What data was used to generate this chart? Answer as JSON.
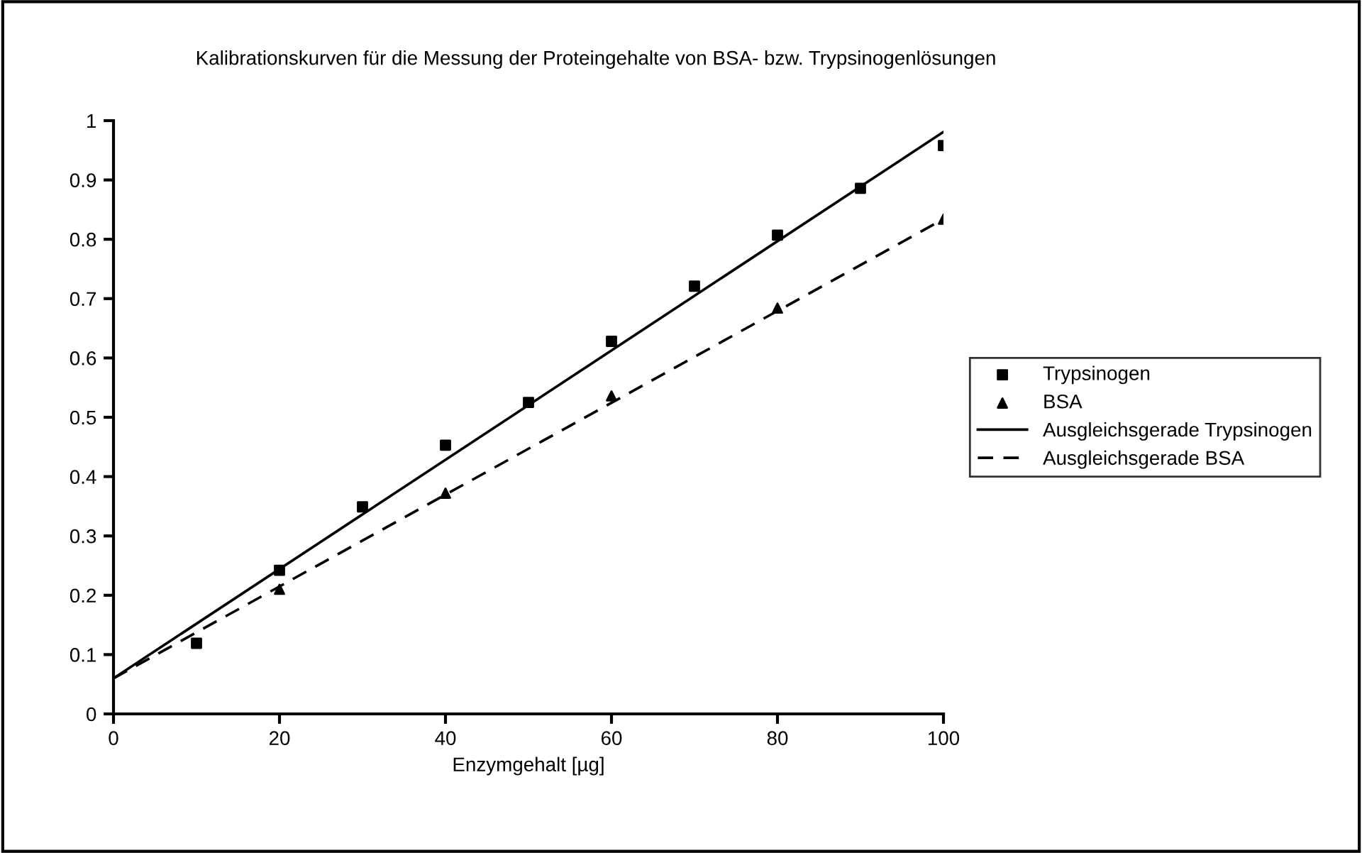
{
  "chart_data": {
    "type": "scatter",
    "title": "Kalibrationskurven für die Messung der Proteingehalte von BSA- bzw. Trypsinogenlösungen",
    "xlabel": "Enzymgehalt [µg]",
    "xlim": [
      0,
      100
    ],
    "xticks": [
      0,
      20,
      40,
      60,
      80,
      100
    ],
    "ylim": [
      0,
      1
    ],
    "yticks": [
      0,
      0.1,
      0.2,
      0.3,
      0.4,
      0.5,
      0.6,
      0.7,
      0.8,
      0.9,
      1
    ],
    "grid": false,
    "legend": "right",
    "series": [
      {
        "name": "Trypsinogen",
        "marker": "square",
        "color": "#000000",
        "x": [
          10,
          20,
          30,
          40,
          50,
          60,
          70,
          80,
          90,
          100
        ],
        "values": [
          0.119,
          0.242,
          0.349,
          0.453,
          0.525,
          0.628,
          0.721,
          0.807,
          0.886,
          0.958
        ]
      },
      {
        "name": "BSA",
        "marker": "triangle",
        "color": "#000000",
        "x": [
          20,
          40,
          60,
          80,
          100
        ],
        "values": [
          0.21,
          0.372,
          0.536,
          0.684,
          0.834
        ]
      },
      {
        "name": "Ausgleichsgerade Trypsinogen",
        "type": "line",
        "line_style": "solid",
        "color": "#000000",
        "x": [
          0,
          100
        ],
        "values": [
          0.06,
          0.981
        ]
      },
      {
        "name": "Ausgleichsgerade BSA",
        "type": "line",
        "line_style": "dashed",
        "color": "#000000",
        "x": [
          0,
          100
        ],
        "values": [
          0.06,
          0.834
        ]
      }
    ]
  }
}
